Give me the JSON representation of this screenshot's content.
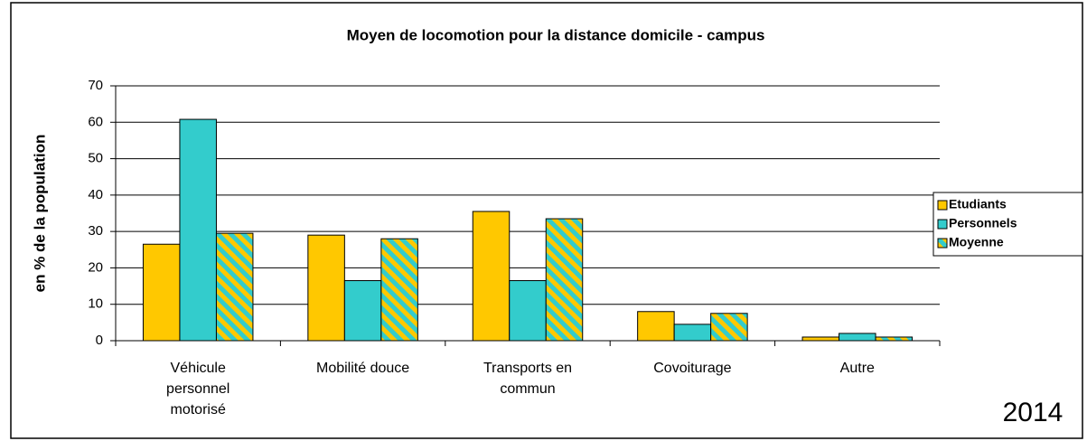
{
  "chart_data": {
    "type": "bar",
    "title": "Moyen de locomotion pour la distance domicile - campus",
    "y_label": "en % de la population",
    "annotation": "2014",
    "categories": [
      "Véhicule personnel motorisé",
      "Mobilité douce",
      "Transports en commun",
      "Covoiturage",
      "Autre"
    ],
    "series": [
      {
        "name": "Etudiants",
        "color": "#FFC800",
        "values": [
          26.5,
          29,
          35.5,
          8,
          1
        ]
      },
      {
        "name": "Personnels",
        "color": "#33CCCC",
        "values": [
          60.8,
          16.5,
          16.5,
          4.5,
          2
        ]
      },
      {
        "name": "Moyenne",
        "color": "#33CCCC",
        "hatch_color": "#FFC800",
        "values": [
          29.5,
          28,
          33.5,
          7.5,
          1
        ]
      }
    ],
    "ylim": [
      0,
      70
    ],
    "yticks": [
      0,
      10,
      20,
      30,
      40,
      50,
      60,
      70
    ],
    "grid": true,
    "legend": "right"
  }
}
